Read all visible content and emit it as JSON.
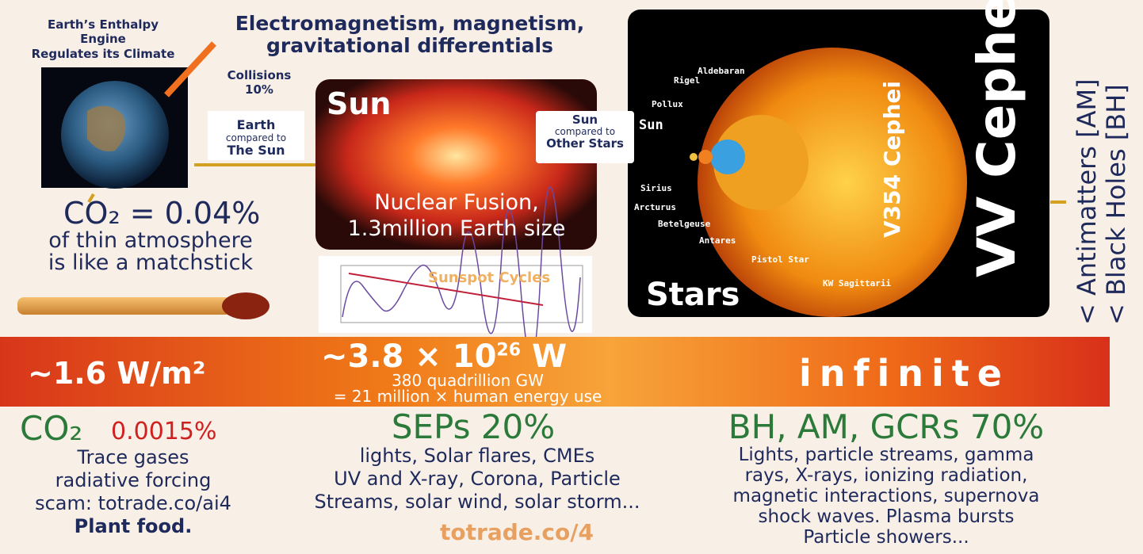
{
  "header": {
    "left_title": [
      "Earth’s Enthalpy",
      "Engine",
      "Regulates its Climate"
    ],
    "top_title": [
      "Electromagnetism, magnetism,",
      "gravitational differentials"
    ]
  },
  "earth": {
    "collisions": [
      "Collisions",
      "10%"
    ],
    "arrow_label": [
      "Earth",
      "compared to",
      "The Sun"
    ],
    "co2": "CO₂ = 0.04%",
    "co2_note": [
      "of thin atmosphere",
      "is like a matchstick"
    ]
  },
  "sun": {
    "title": "Sun",
    "caption": [
      "Nuclear Fusion,",
      "1.3million Earth size"
    ],
    "chart_label": "Sunspot Cycles",
    "arrow_label": [
      "Sun",
      "compared to",
      "Other Stars"
    ]
  },
  "stars": {
    "title": "Stars",
    "names": [
      "Aldebaran",
      "Rigel",
      "Pollux",
      "Sun",
      "Sirius",
      "Arcturus",
      "Betelgeuse",
      "Antares",
      "Pistol Star",
      "KW Sagittarii"
    ],
    "v354": "V354 Cephei",
    "vv": "VV Cephei"
  },
  "side": [
    "< Antimatters [AM]",
    "< Black Holes [BH]"
  ],
  "band": {
    "left": "~1.6 W/m²",
    "mid_base": "~3.8 × 10",
    "mid_exp": "26",
    "mid_unit": "W",
    "mid_sub": [
      "380 quadrillion GW",
      "= 21 million × human energy use"
    ],
    "right": "infinite"
  },
  "bottom": {
    "co2": {
      "head": "CO₂",
      "pct": "0.0015%",
      "lines": [
        "Trace gases",
        "radiative forcing",
        "scam: totrade.co/ai4",
        "Plant food."
      ]
    },
    "seps": {
      "head": "SEPs 20%",
      "lines": [
        "lights, Solar flares, CMEs",
        "UV and X-ray, Corona, Particle",
        "Streams, solar wind, solar storm..."
      ]
    },
    "bh": {
      "head": "BH, AM, GCRs 70%",
      "lines": [
        "Lights, particle streams, gamma",
        "rays, X-rays, ionizing radiation,",
        "magnetic interactions, supernova",
        "shock waves. Plasma bursts",
        "Particle showers..."
      ]
    }
  },
  "footer": "totrade.co/4"
}
